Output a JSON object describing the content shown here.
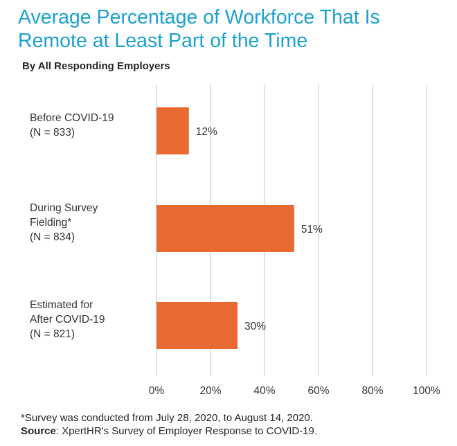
{
  "title": "Average Percentage of Workforce That Is Remote at Least Part of the Time",
  "subtitle": "By All Responding Employers",
  "footnote": "*Survey was conducted from July 28, 2020, to August 14, 2020.",
  "source": {
    "label": "Source",
    "text": ": XpertHR's Survey of Employer Response to COVID-19."
  },
  "colors": {
    "title": "#1ba1cf",
    "bar": "#e86a33",
    "grid": "#d9d9d9"
  },
  "chart_data": {
    "type": "bar",
    "orientation": "horizontal",
    "categories": [
      "Before COVID-19\n(N = 833)",
      "During Survey\nFielding*\n(N = 834)",
      "Estimated for\nAfter COVID-19\n(N = 821)"
    ],
    "values": [
      12,
      51,
      30
    ],
    "value_labels": [
      "12%",
      "51%",
      "30%"
    ],
    "xlim": [
      0,
      100
    ],
    "xticks": [
      0,
      20,
      40,
      60,
      80,
      100
    ],
    "xtick_labels": [
      "0%",
      "20%",
      "40%",
      "60%",
      "80%",
      "100%"
    ],
    "grid": true,
    "legend": false
  }
}
